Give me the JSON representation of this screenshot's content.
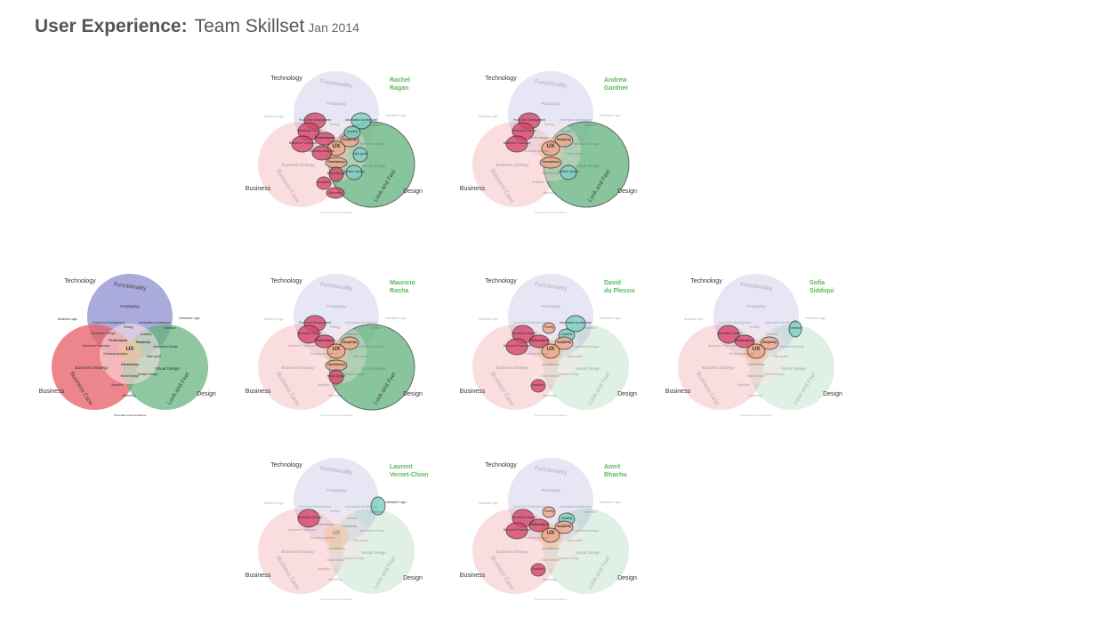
{
  "header": {
    "title": "User Experience:",
    "subtitle": "Team Skillset",
    "date": "Jan 2014"
  },
  "colors": {
    "technology": "#8e8ed0",
    "business": "#e8636d",
    "design": "#62b27c",
    "ux_center": "#f4c39a",
    "member_name": "#5cb85c"
  },
  "circle_labels": {
    "technology_outer": "Technology",
    "business_outer": "Business",
    "design_outer": "Design",
    "functionality": "Functionality",
    "business_case": "Business Case",
    "look_and_feel": "Look and Feel"
  },
  "inner_labels": {
    "prototyping": "Prototyping",
    "business_logic": "Business Logic",
    "interactive_logic": "Interactive Logic",
    "front_end_development": "Front-End Development",
    "interaction_design": "Interaction Design",
    "information_architecture": "Information Architecture",
    "interface": "Interface",
    "testing": "Testing",
    "usability": "Usability",
    "performance": "Performance",
    "simplicity": "Simplicity",
    "ux": "UX",
    "consistency": "Consistency",
    "business_processes": "Business Processes",
    "business_analysis": "Business Analysis",
    "information_design": "Information Design",
    "style_guide": "Style guide",
    "business_strategy": "Business Strategy",
    "brand_design": "Brand Design",
    "analytics": "Analytics",
    "surface_design": "Surface Design",
    "visual_design": "Visual Design",
    "marketing": "Marketing",
    "corporate_communications": "Corporate Communications"
  },
  "members": [
    {
      "name_line1": "",
      "name_line2": "",
      "skills": "all"
    },
    {
      "name_line1": "Rachel",
      "name_line2": "Ragan",
      "skills": [
        "design_circle",
        "front_end_development",
        "interaction_design",
        "business_processes",
        "performance",
        "simplicity",
        "ux",
        "consistency",
        "business_analysis",
        "information_architecture",
        "usability",
        "style_guide",
        "brand_design",
        "analytics",
        "surface_design",
        "marketing"
      ]
    },
    {
      "name_line1": "Andrew",
      "name_line2": "Gardner",
      "skills": [
        "design_circle",
        "front_end_development",
        "interaction_design",
        "business_processes",
        "simplicity",
        "ux",
        "consistency",
        "surface_design"
      ]
    },
    {
      "name_line1": "Mauricio",
      "name_line2": "Rocha",
      "skills": [
        "design_circle",
        "front_end_development",
        "interaction_design",
        "performance",
        "simplicity",
        "ux",
        "consistency",
        "brand_design"
      ]
    },
    {
      "name_line1": "David",
      "name_line2": "du Plessis",
      "skills": [
        "interaction_design",
        "testing",
        "usability",
        "information_architecture",
        "performance",
        "simplicity",
        "ux",
        "analytics",
        "business_processes"
      ]
    },
    {
      "name_line1": "Sofia",
      "name_line2": "Siddiqui",
      "skills": [
        "interaction_design",
        "performance",
        "simplicity",
        "ux",
        "interface"
      ]
    },
    {
      "name_line1": "Laurent",
      "name_line2": "Vernet-Chinn",
      "skills": [
        "interaction_design",
        "interactive_logic"
      ]
    },
    {
      "name_line1": "Amrit",
      "name_line2": "Bhachu",
      "skills": [
        "interaction_design",
        "performance",
        "testing",
        "usability",
        "simplicity",
        "ux",
        "analytics",
        "business_processes"
      ]
    }
  ]
}
